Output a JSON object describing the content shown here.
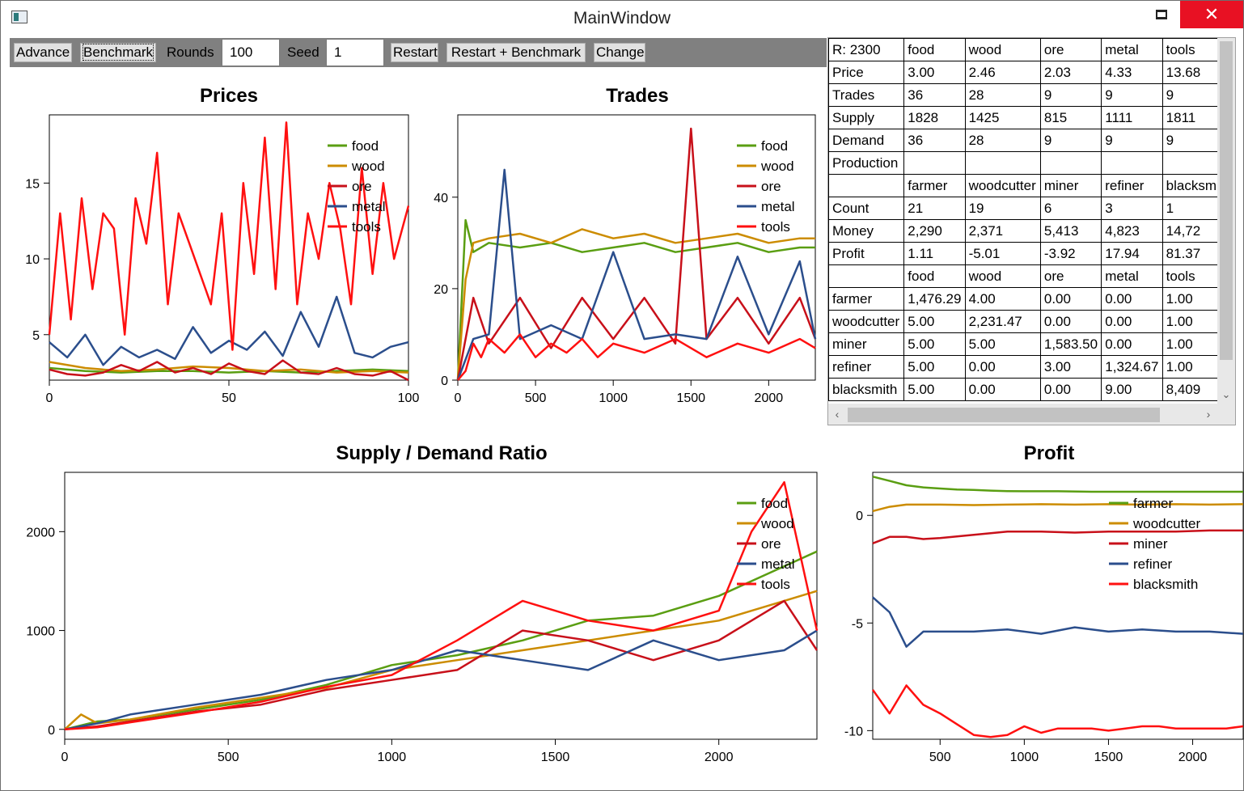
{
  "window": {
    "title": "MainWindow"
  },
  "titlebar_buttons": {
    "minimize": "minimize",
    "maximize": "maximize",
    "close": "✕"
  },
  "toolbar": {
    "advance_label": "Advance",
    "benchmark_label": "Benchmark",
    "rounds_label": "Rounds",
    "rounds_value": "100",
    "seed_label": "Seed",
    "seed_value": "1",
    "restart_label": "Restart",
    "restart_benchmark_label": "Restart + Benchmark",
    "change_label": "Change"
  },
  "stats_table": {
    "rows": [
      [
        "R: 2300",
        "food",
        "wood",
        "ore",
        "metal",
        "tools"
      ],
      [
        "Price",
        "3.00",
        "2.46",
        "2.03",
        "4.33",
        "13.68"
      ],
      [
        "Trades",
        "36",
        "28",
        "9",
        "9",
        "9"
      ],
      [
        "Supply",
        "1828",
        "1425",
        "815",
        "1111",
        "1811"
      ],
      [
        "Demand",
        "36",
        "28",
        "9",
        "9",
        "9"
      ],
      [
        "Production",
        "",
        "",
        "",
        "",
        ""
      ],
      [
        "",
        "farmer",
        "woodcutter",
        "miner",
        "refiner",
        "blacksmith"
      ],
      [
        "Count",
        "21",
        "19",
        "6",
        "3",
        "1"
      ],
      [
        "Money",
        "2,290",
        "2,371",
        "5,413",
        "4,823",
        "14,72"
      ],
      [
        "Profit",
        "1.11",
        "-5.01",
        "-3.92",
        "17.94",
        "81.37"
      ],
      [
        "",
        "food",
        "wood",
        "ore",
        "metal",
        "tools"
      ],
      [
        "farmer",
        "1,476.29",
        "4.00",
        "0.00",
        "0.00",
        "1.00"
      ],
      [
        "woodcutter",
        "5.00",
        "2,231.47",
        "0.00",
        "0.00",
        "1.00"
      ],
      [
        "miner",
        "5.00",
        "5.00",
        "1,583.50",
        "0.00",
        "1.00"
      ],
      [
        "refiner",
        "5.00",
        "0.00",
        "3.00",
        "1,324.67",
        "1.00"
      ],
      [
        "blacksmith",
        "5.00",
        "0.00",
        "0.00",
        "9.00",
        "8,409"
      ]
    ]
  },
  "colors": {
    "food": "#5a9e12",
    "wood": "#cc8c00",
    "ore": "#c8101a",
    "metal": "#2b4e8c",
    "tools": "#ff1010"
  },
  "chart_data": [
    {
      "id": "prices",
      "type": "line",
      "title": "Prices",
      "xlim": [
        0,
        100
      ],
      "ylim": [
        2,
        19.5
      ],
      "xticks": [
        0,
        50,
        100
      ],
      "xtick_labels": [
        "0",
        "50",
        "100"
      ],
      "yticks": [
        5,
        10,
        15
      ],
      "ytick_labels": [
        "5",
        "10",
        "15"
      ],
      "legend": "top-right",
      "series": [
        {
          "name": "food",
          "color": "#5a9e12",
          "x": [
            0,
            10,
            20,
            30,
            40,
            50,
            60,
            70,
            80,
            90,
            100
          ],
          "y": [
            2.8,
            2.6,
            2.5,
            2.6,
            2.6,
            2.5,
            2.6,
            2.5,
            2.6,
            2.7,
            2.6
          ]
        },
        {
          "name": "wood",
          "color": "#cc8c00",
          "x": [
            0,
            10,
            20,
            30,
            40,
            50,
            60,
            70,
            80,
            90,
            100
          ],
          "y": [
            3.2,
            2.8,
            2.6,
            2.7,
            2.9,
            2.8,
            2.6,
            2.7,
            2.5,
            2.6,
            2.5
          ]
        },
        {
          "name": "ore",
          "color": "#c8101a",
          "x": [
            0,
            5,
            10,
            15,
            20,
            25,
            30,
            35,
            40,
            45,
            50,
            55,
            60,
            65,
            70,
            75,
            80,
            85,
            90,
            95,
            100
          ],
          "y": [
            2.7,
            2.4,
            2.3,
            2.5,
            3.0,
            2.6,
            3.2,
            2.5,
            2.8,
            2.4,
            3.1,
            2.6,
            2.4,
            3.3,
            2.5,
            2.4,
            2.8,
            2.4,
            2.3,
            2.6,
            2.0
          ]
        },
        {
          "name": "metal",
          "color": "#2b4e8c",
          "x": [
            0,
            5,
            10,
            15,
            20,
            25,
            30,
            35,
            40,
            45,
            50,
            55,
            60,
            65,
            70,
            75,
            80,
            85,
            90,
            95,
            100
          ],
          "y": [
            4.5,
            3.5,
            5.0,
            3.0,
            4.2,
            3.5,
            4.0,
            3.4,
            5.5,
            3.8,
            4.6,
            4.0,
            5.2,
            3.6,
            6.5,
            4.2,
            7.5,
            3.8,
            3.5,
            4.2,
            4.5
          ]
        },
        {
          "name": "tools",
          "color": "#ff1010",
          "x": [
            0,
            3,
            6,
            9,
            12,
            15,
            18,
            21,
            24,
            27,
            30,
            33,
            36,
            39,
            42,
            45,
            48,
            51,
            54,
            57,
            60,
            63,
            66,
            69,
            72,
            75,
            78,
            81,
            84,
            87,
            90,
            93,
            96,
            100
          ],
          "y": [
            5,
            13,
            6,
            14,
            8,
            13,
            12,
            5,
            14,
            11,
            17,
            7,
            13,
            11,
            9,
            7,
            13,
            4,
            15,
            9,
            18,
            8,
            19,
            7,
            13,
            10,
            15,
            12,
            7,
            16,
            9,
            15,
            10,
            13.5
          ]
        }
      ]
    },
    {
      "id": "trades",
      "type": "line",
      "title": "Trades",
      "xlim": [
        0,
        2300
      ],
      "ylim": [
        0,
        58
      ],
      "xticks": [
        0,
        500,
        1000,
        1500,
        2000
      ],
      "xtick_labels": [
        "0",
        "500",
        "1000",
        "1500",
        "2000"
      ],
      "yticks": [
        0,
        20,
        40
      ],
      "ytick_labels": [
        "0",
        "20",
        "40"
      ],
      "legend": "top-right",
      "series": [
        {
          "name": "food",
          "color": "#5a9e12",
          "x": [
            0,
            50,
            100,
            200,
            400,
            600,
            800,
            1000,
            1200,
            1400,
            1600,
            1800,
            2000,
            2200,
            2300
          ],
          "y": [
            0,
            35,
            28,
            30,
            29,
            30,
            28,
            29,
            30,
            28,
            29,
            30,
            28,
            29,
            29
          ]
        },
        {
          "name": "wood",
          "color": "#cc8c00",
          "x": [
            0,
            50,
            100,
            200,
            400,
            600,
            800,
            1000,
            1200,
            1400,
            1600,
            1800,
            2000,
            2200,
            2300
          ],
          "y": [
            0,
            22,
            30,
            31,
            32,
            30,
            33,
            31,
            32,
            30,
            31,
            32,
            30,
            31,
            31
          ]
        },
        {
          "name": "ore",
          "color": "#c8101a",
          "x": [
            0,
            100,
            200,
            400,
            600,
            800,
            1000,
            1200,
            1400,
            1500,
            1600,
            1800,
            2000,
            2200,
            2300
          ],
          "y": [
            0,
            18,
            8,
            18,
            7,
            18,
            9,
            18,
            8,
            55,
            9,
            18,
            8,
            18,
            9
          ]
        },
        {
          "name": "metal",
          "color": "#2b4e8c",
          "x": [
            0,
            100,
            200,
            300,
            400,
            600,
            800,
            1000,
            1200,
            1400,
            1600,
            1800,
            2000,
            2200,
            2300
          ],
          "y": [
            0,
            9,
            10,
            46,
            9,
            12,
            9,
            28,
            9,
            10,
            9,
            27,
            10,
            26,
            9
          ]
        },
        {
          "name": "tools",
          "color": "#ff1010",
          "x": [
            0,
            50,
            100,
            150,
            200,
            300,
            400,
            500,
            600,
            700,
            800,
            900,
            1000,
            1200,
            1400,
            1600,
            1800,
            2000,
            2200,
            2300
          ],
          "y": [
            0,
            2,
            8,
            5,
            9,
            6,
            10,
            5,
            8,
            6,
            9,
            5,
            8,
            6,
            9,
            5,
            8,
            6,
            9,
            7
          ]
        }
      ]
    },
    {
      "id": "supply-demand",
      "type": "line",
      "title": "Supply / Demand Ratio",
      "xlim": [
        0,
        2300
      ],
      "ylim": [
        -100,
        2600
      ],
      "xticks": [
        0,
        500,
        1000,
        1500,
        2000
      ],
      "xtick_labels": [
        "0",
        "500",
        "1000",
        "1500",
        "2000"
      ],
      "yticks": [
        0,
        1000,
        2000
      ],
      "ytick_labels": [
        "0",
        "1000",
        "2000"
      ],
      "legend": "top-right",
      "series": [
        {
          "name": "food",
          "color": "#5a9e12",
          "x": [
            0,
            100,
            200,
            400,
            600,
            800,
            1000,
            1200,
            1400,
            1600,
            1800,
            2000,
            2200,
            2300
          ],
          "y": [
            0,
            80,
            100,
            200,
            300,
            450,
            650,
            750,
            900,
            1100,
            1150,
            1350,
            1650,
            1800
          ]
        },
        {
          "name": "wood",
          "color": "#cc8c00",
          "x": [
            0,
            50,
            100,
            200,
            400,
            600,
            800,
            1000,
            1200,
            1400,
            1600,
            1800,
            2000,
            2200,
            2300
          ],
          "y": [
            0,
            150,
            60,
            100,
            220,
            320,
            420,
            600,
            700,
            800,
            900,
            1000,
            1100,
            1300,
            1400
          ]
        },
        {
          "name": "ore",
          "color": "#c8101a",
          "x": [
            0,
            100,
            200,
            400,
            600,
            800,
            1000,
            1200,
            1400,
            1600,
            1800,
            2000,
            2200,
            2300
          ],
          "y": [
            0,
            30,
            80,
            180,
            250,
            400,
            500,
            600,
            1000,
            900,
            700,
            900,
            1300,
            800
          ]
        },
        {
          "name": "metal",
          "color": "#2b4e8c",
          "x": [
            0,
            100,
            200,
            400,
            600,
            800,
            1000,
            1200,
            1400,
            1600,
            1800,
            2000,
            2200,
            2300
          ],
          "y": [
            0,
            60,
            150,
            250,
            350,
            500,
            600,
            800,
            700,
            600,
            900,
            700,
            800,
            1000
          ]
        },
        {
          "name": "tools",
          "color": "#ff1010",
          "x": [
            0,
            100,
            200,
            400,
            600,
            800,
            1000,
            1200,
            1400,
            1600,
            1800,
            2000,
            2100,
            2200,
            2300
          ],
          "y": [
            0,
            20,
            70,
            170,
            280,
            430,
            550,
            900,
            1300,
            1100,
            1000,
            1200,
            2000,
            2500,
            1000
          ]
        }
      ]
    },
    {
      "id": "profit",
      "type": "line",
      "title": "Profit",
      "xlim": [
        100,
        2300
      ],
      "ylim": [
        -10.4,
        2.0
      ],
      "xticks": [
        500,
        1000,
        1500,
        2000
      ],
      "xtick_labels": [
        "500",
        "1000",
        "1500",
        "2000"
      ],
      "yticks": [
        0,
        -5,
        -10
      ],
      "ytick_labels": [
        "0",
        "-5",
        "-10"
      ],
      "legend": "top-right",
      "series": [
        {
          "name": "farmer",
          "color": "#5a9e12",
          "x": [
            100,
            200,
            300,
            400,
            500,
            600,
            700,
            800,
            900,
            1000,
            1200,
            1400,
            1600,
            1800,
            2000,
            2200,
            2300
          ],
          "y": [
            1.8,
            1.6,
            1.4,
            1.3,
            1.25,
            1.2,
            1.18,
            1.15,
            1.13,
            1.12,
            1.12,
            1.1,
            1.1,
            1.1,
            1.1,
            1.1,
            1.1
          ]
        },
        {
          "name": "woodcutter",
          "color": "#cc8c00",
          "x": [
            100,
            200,
            300,
            400,
            500,
            700,
            900,
            1100,
            1300,
            1500,
            1700,
            1900,
            2100,
            2300
          ],
          "y": [
            0.2,
            0.4,
            0.5,
            0.5,
            0.5,
            0.48,
            0.5,
            0.52,
            0.5,
            0.52,
            0.5,
            0.52,
            0.5,
            0.52
          ]
        },
        {
          "name": "miner",
          "color": "#c8101a",
          "x": [
            100,
            200,
            300,
            400,
            500,
            700,
            900,
            1100,
            1300,
            1500,
            1700,
            1900,
            2100,
            2300
          ],
          "y": [
            -1.3,
            -1.0,
            -1.0,
            -1.1,
            -1.05,
            -0.9,
            -0.75,
            -0.75,
            -0.8,
            -0.75,
            -0.75,
            -0.75,
            -0.7,
            -0.7
          ]
        },
        {
          "name": "refiner",
          "color": "#2b4e8c",
          "x": [
            100,
            200,
            300,
            400,
            500,
            700,
            900,
            1100,
            1300,
            1500,
            1700,
            1900,
            2100,
            2300
          ],
          "y": [
            -3.8,
            -4.5,
            -6.1,
            -5.4,
            -5.4,
            -5.4,
            -5.3,
            -5.5,
            -5.2,
            -5.4,
            -5.3,
            -5.4,
            -5.4,
            -5.5
          ]
        },
        {
          "name": "blacksmith",
          "color": "#ff1010",
          "x": [
            100,
            200,
            300,
            400,
            500,
            600,
            700,
            800,
            900,
            1000,
            1100,
            1200,
            1300,
            1400,
            1500,
            1600,
            1700,
            1800,
            1900,
            2000,
            2100,
            2200,
            2300
          ],
          "y": [
            -8.1,
            -9.2,
            -7.9,
            -8.8,
            -9.2,
            -9.7,
            -10.2,
            -10.3,
            -10.2,
            -9.8,
            -10.1,
            -9.9,
            -9.9,
            -9.9,
            -10.0,
            -9.9,
            -9.8,
            -9.8,
            -9.9,
            -9.9,
            -9.9,
            -9.9,
            -9.8
          ]
        }
      ]
    }
  ]
}
